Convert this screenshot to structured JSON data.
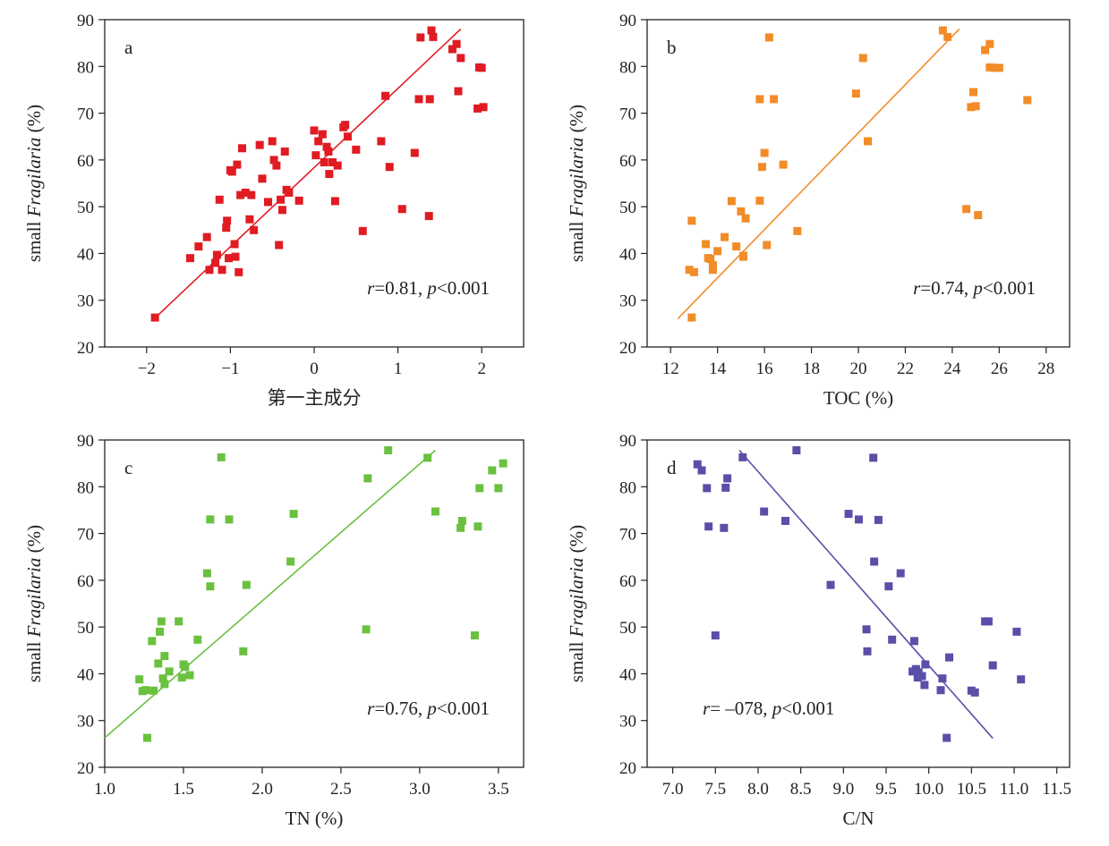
{
  "chart_data": [
    {
      "type": "scatter",
      "panel_label": "a",
      "xlabel": "第一主成分",
      "ylabel_prefix": "small ",
      "ylabel_italic": "Fragilaria",
      "ylabel_suffix": " (%)",
      "xlim": [
        -2.5,
        2.5
      ],
      "ylim": [
        20,
        90
      ],
      "xticks": [
        -2,
        -1,
        0,
        1,
        2
      ],
      "xtick_labels": [
        "−2",
        "−1",
        "0",
        "1",
        "2"
      ],
      "yticks": [
        20,
        30,
        40,
        50,
        60,
        70,
        80,
        90
      ],
      "stat_r_symbol": "r",
      "stat_r_value": "=0.81, ",
      "stat_p_symbol": "p",
      "stat_p_value": "<0.001",
      "stat_position": "bottom-right",
      "color": "#e01b22",
      "trendline": {
        "x": [
          -1.9,
          1.75
        ],
        "y": [
          26.2,
          88
        ]
      },
      "points": {
        "x": [
          -1.9,
          -1.48,
          -1.38,
          -1.28,
          -1.25,
          -1.18,
          -1.16,
          -1.13,
          -1.1,
          -1.05,
          -1.04,
          -1.02,
          -1.0,
          -0.98,
          -0.95,
          -0.94,
          -0.92,
          -0.9,
          -0.88,
          -0.86,
          -0.82,
          -0.77,
          -0.75,
          -0.72,
          -0.65,
          -0.62,
          -0.55,
          -0.5,
          -0.48,
          -0.45,
          -0.42,
          -0.4,
          -0.38,
          -0.35,
          -0.33,
          -0.3,
          -0.18,
          0.0,
          0.02,
          0.05,
          0.1,
          0.12,
          0.15,
          0.17,
          0.18,
          0.22,
          0.25,
          0.28,
          0.35,
          0.37,
          0.4,
          0.5,
          0.58,
          0.8,
          0.85,
          0.9,
          1.05,
          1.2,
          1.25,
          1.27,
          1.37,
          1.38,
          1.4,
          1.42,
          1.65,
          1.7,
          1.72,
          1.75,
          1.95,
          1.97,
          2.0,
          2.02
        ],
        "y": [
          26.3,
          39,
          41.5,
          43.5,
          36.5,
          38,
          39.7,
          51.5,
          36.5,
          45.5,
          47,
          39,
          57.8,
          57.5,
          42,
          39.3,
          59,
          36,
          52.5,
          62.5,
          53,
          47.3,
          52.5,
          45,
          63.2,
          56,
          51,
          64,
          60,
          58.8,
          41.8,
          51.5,
          49.3,
          61.8,
          53.6,
          53,
          51.3,
          66.3,
          61,
          64,
          65.5,
          59.5,
          62.8,
          61.8,
          57,
          59.5,
          51.2,
          58.8,
          67,
          67.5,
          65,
          62.2,
          44.8,
          64,
          73.7,
          58.5,
          49.5,
          61.5,
          73,
          86.2,
          48,
          73,
          87.7,
          86.3,
          83.7,
          84.8,
          74.7,
          81.8,
          71,
          79.8,
          79.7,
          71.3
        ]
      }
    },
    {
      "type": "scatter",
      "panel_label": "b",
      "xlabel": "TOC (%)",
      "ylabel_prefix": "small ",
      "ylabel_italic": "Fragilaria",
      "ylabel_suffix": " (%)",
      "xlim": [
        11,
        29
      ],
      "ylim": [
        20,
        90
      ],
      "xticks": [
        12,
        14,
        16,
        18,
        20,
        22,
        24,
        26,
        28
      ],
      "xtick_labels": [
        "12",
        "14",
        "16",
        "18",
        "20",
        "22",
        "24",
        "26",
        "28"
      ],
      "yticks": [
        20,
        30,
        40,
        50,
        60,
        70,
        80,
        90
      ],
      "stat_r_symbol": "r",
      "stat_r_value": "=0.74, ",
      "stat_p_symbol": "p",
      "stat_p_value": "<0.001",
      "stat_position": "bottom-right",
      "color": "#f28c28",
      "trendline": {
        "x": [
          12.3,
          24.3
        ],
        "y": [
          26,
          88
        ]
      },
      "points": {
        "x": [
          12.8,
          12.9,
          12.9,
          13.0,
          13.5,
          13.6,
          13.7,
          13.8,
          13.8,
          14.0,
          14.3,
          14.6,
          14.8,
          15.0,
          15.1,
          15.1,
          15.2,
          15.8,
          15.8,
          15.9,
          16.0,
          16.1,
          16.2,
          16.4,
          16.8,
          17.4,
          19.9,
          20.2,
          20.4,
          23.6,
          23.8,
          24.6,
          24.8,
          24.9,
          25.0,
          25.1,
          25.4,
          25.6,
          25.6,
          25.8,
          26.0,
          27.2
        ],
        "y": [
          36.5,
          47,
          26.3,
          36,
          42,
          39,
          38.8,
          36.5,
          37.5,
          40.5,
          43.5,
          51.2,
          41.5,
          49,
          39.3,
          39.5,
          47.5,
          73,
          51.3,
          58.5,
          61.5,
          41.8,
          86.2,
          73,
          59,
          44.8,
          74.2,
          81.8,
          64,
          87.7,
          86.3,
          49.5,
          71.3,
          74.5,
          71.5,
          48.2,
          83.5,
          79.8,
          84.8,
          79.7,
          79.7,
          72.8
        ]
      }
    },
    {
      "type": "scatter",
      "panel_label": "c",
      "xlabel": "TN (%)",
      "ylabel_prefix": "small ",
      "ylabel_italic": "Fragilaria",
      "ylabel_suffix": " (%)",
      "xlim": [
        1.0,
        3.66
      ],
      "ylim": [
        20,
        90
      ],
      "xticks": [
        1.0,
        1.5,
        2.0,
        2.5,
        3.0,
        3.5
      ],
      "xtick_labels": [
        "1.0",
        "1.5",
        "2.0",
        "2.5",
        "3.0",
        "3.5"
      ],
      "yticks": [
        20,
        30,
        40,
        50,
        60,
        70,
        80,
        90
      ],
      "stat_r_symbol": "r",
      "stat_r_value": "=0.76, ",
      "stat_p_symbol": "p",
      "stat_p_value": "<0.001",
      "stat_position": "bottom-right",
      "color": "#6ac13f",
      "trendline": {
        "x": [
          1.0,
          3.1
        ],
        "y": [
          26.3,
          87.8
        ]
      },
      "points": {
        "x": [
          1.22,
          1.24,
          1.26,
          1.27,
          1.3,
          1.31,
          1.34,
          1.35,
          1.36,
          1.37,
          1.38,
          1.38,
          1.41,
          1.47,
          1.49,
          1.5,
          1.51,
          1.54,
          1.59,
          1.65,
          1.67,
          1.67,
          1.74,
          1.79,
          1.88,
          1.9,
          2.18,
          2.2,
          2.66,
          2.67,
          2.8,
          3.05,
          3.1,
          3.26,
          3.27,
          3.35,
          3.37,
          3.38,
          3.46,
          3.5,
          3.53
        ],
        "y": [
          38.8,
          36.3,
          36.5,
          26.3,
          47,
          36.4,
          42.2,
          49,
          51.2,
          39,
          37.8,
          43.8,
          40.5,
          51.2,
          39.2,
          42,
          41.5,
          39.7,
          47.3,
          61.5,
          58.7,
          73,
          86.3,
          73,
          44.8,
          59,
          64,
          74.2,
          49.5,
          81.8,
          87.8,
          86.2,
          74.7,
          71.2,
          72.7,
          48.2,
          71.5,
          79.7,
          83.5,
          79.7,
          85
        ]
      }
    },
    {
      "type": "scatter",
      "panel_label": "d",
      "xlabel": "C/N",
      "ylabel_prefix": "small ",
      "ylabel_italic": "Fragilaria",
      "ylabel_suffix": " (%)",
      "xlim": [
        6.7,
        11.65
      ],
      "ylim": [
        20,
        90
      ],
      "xticks": [
        7.0,
        7.5,
        8.0,
        8.5,
        9.0,
        9.5,
        10.0,
        10.5,
        11.0,
        11.5
      ],
      "xtick_labels": [
        "7.0",
        "7.5",
        "8.0",
        "8.5",
        "9.0",
        "9.5",
        "10.0",
        "10.5",
        "11.0",
        "11.5"
      ],
      "yticks": [
        20,
        30,
        40,
        50,
        60,
        70,
        80,
        90
      ],
      "stat_r_symbol": "r",
      "stat_r_value": "= –078, ",
      "stat_p_symbol": "p",
      "stat_p_value": "<0.001",
      "stat_position": "bottom-left",
      "color": "#5a4fa8",
      "trendline": {
        "x": [
          7.78,
          10.75
        ],
        "y": [
          87.8,
          26.2
        ]
      },
      "points": {
        "x": [
          7.29,
          7.34,
          7.4,
          7.42,
          7.5,
          7.6,
          7.62,
          7.64,
          7.82,
          8.07,
          8.32,
          8.45,
          8.85,
          9.06,
          9.18,
          9.27,
          9.28,
          9.35,
          9.36,
          9.41,
          9.53,
          9.57,
          9.67,
          9.81,
          9.83,
          9.85,
          9.87,
          9.88,
          9.92,
          9.95,
          9.96,
          10.14,
          10.16,
          10.21,
          10.24,
          10.5,
          10.54,
          10.66,
          10.7,
          10.75,
          11.03,
          11.08
        ],
        "y": [
          84.8,
          83.5,
          79.7,
          71.5,
          48.2,
          71.2,
          79.8,
          81.8,
          86.3,
          74.7,
          72.7,
          87.8,
          59,
          74.2,
          73,
          49.5,
          44.8,
          86.2,
          64,
          72.9,
          58.7,
          47.3,
          61.5,
          40.5,
          47,
          41,
          39.2,
          40.3,
          39.5,
          37.6,
          42,
          36.5,
          39,
          26.3,
          43.5,
          36.4,
          36,
          51.2,
          51.2,
          41.8,
          49,
          38.8
        ]
      }
    }
  ]
}
